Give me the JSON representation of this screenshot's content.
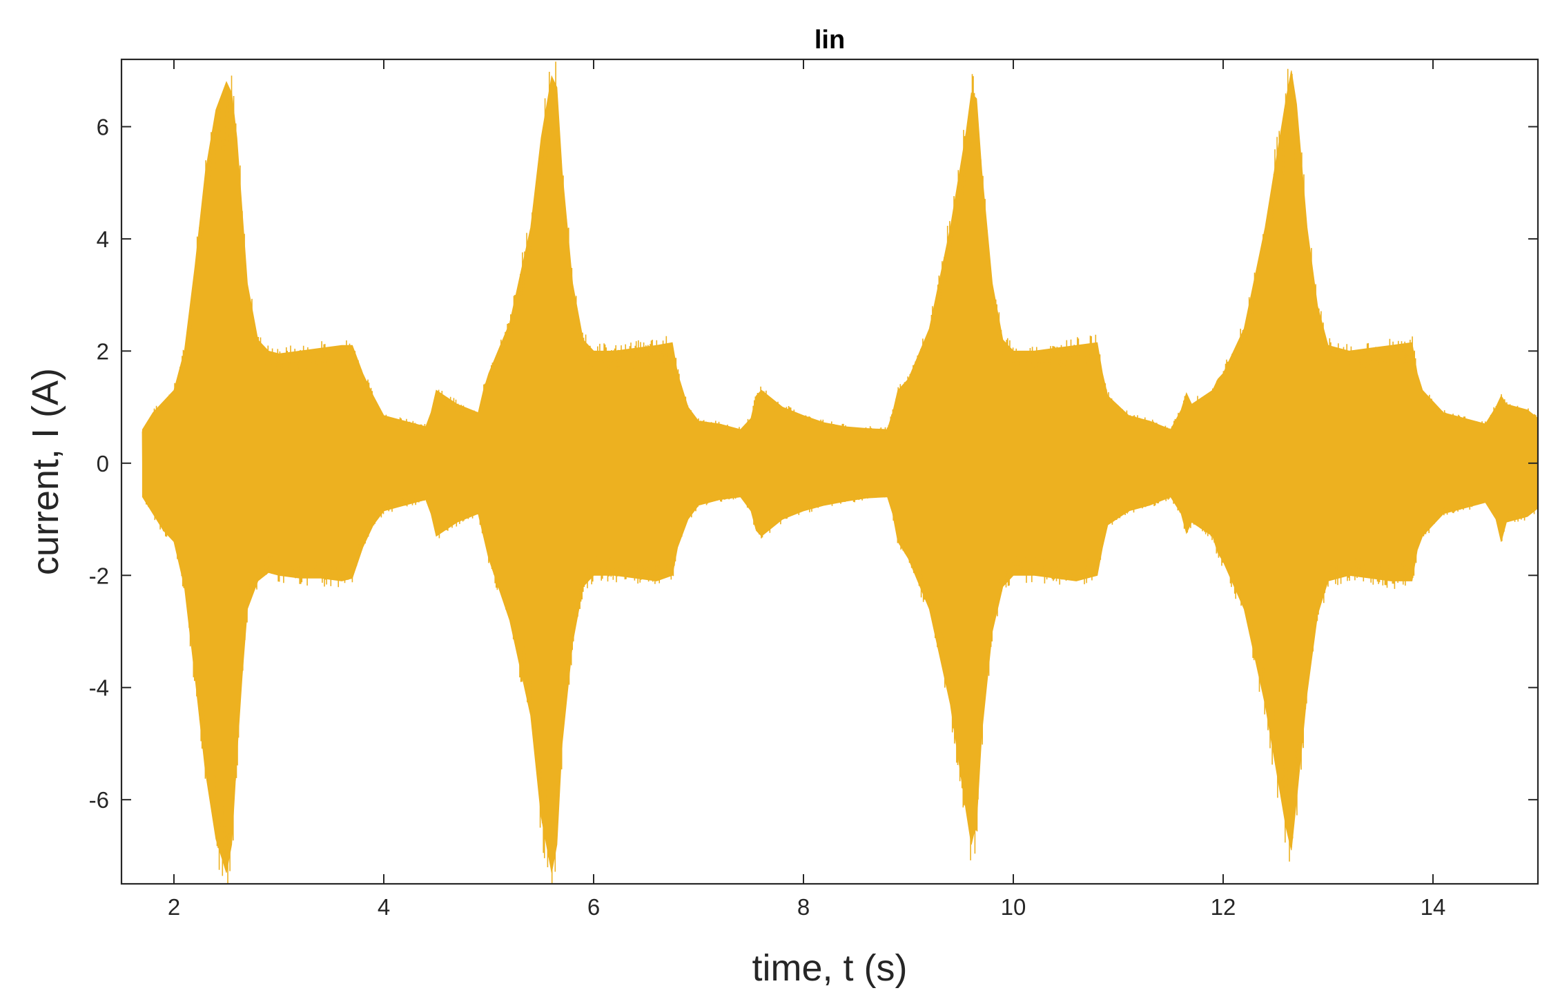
{
  "chart_data": {
    "type": "line",
    "title": "lin",
    "xlabel": "time, t (s)",
    "ylabel": "current, I (A)",
    "xlim": [
      1.5,
      15
    ],
    "ylim": [
      -7.5,
      7.2
    ],
    "xticks": [
      2,
      4,
      6,
      8,
      10,
      12,
      14
    ],
    "yticks": [
      -6,
      -4,
      -2,
      0,
      2,
      4,
      6
    ],
    "xtick_labels": [
      "2",
      "4",
      "6",
      "8",
      "10",
      "12",
      "14"
    ],
    "ytick_labels": [
      "-6",
      "-4",
      "-2",
      "0",
      "2",
      "4",
      "6"
    ],
    "grid": false,
    "box": true,
    "series": [
      {
        "color": "#EDB120",
        "underlay_color": "#0072BD",
        "style": "oscillating signal, filled envelope",
        "envelope": {
          "t": [
            1.7,
            1.8,
            1.9,
            2.0,
            2.1,
            2.2,
            2.3,
            2.4,
            2.5,
            2.55,
            2.6,
            2.65,
            2.7,
            2.8,
            2.9,
            3.0,
            3.2,
            3.4,
            3.6,
            3.7,
            3.8,
            3.9,
            4.0,
            4.2,
            4.4,
            4.45,
            4.5,
            4.7,
            4.9,
            4.95,
            5.0,
            5.2,
            5.4,
            5.5,
            5.6,
            5.65,
            5.7,
            5.8,
            5.9,
            6.0,
            6.2,
            6.4,
            6.6,
            6.75,
            6.8,
            6.9,
            7.0,
            7.2,
            7.4,
            7.5,
            7.55,
            7.6,
            7.8,
            8.0,
            8.2,
            8.4,
            8.6,
            8.8,
            8.85,
            8.9,
            9.0,
            9.2,
            9.4,
            9.55,
            9.6,
            9.65,
            9.7,
            9.8,
            9.9,
            10.0,
            10.2,
            10.4,
            10.6,
            10.8,
            10.85,
            10.9,
            11.1,
            11.3,
            11.5,
            11.6,
            11.65,
            11.7,
            11.9,
            11.95,
            12.0,
            12.2,
            12.4,
            12.6,
            12.65,
            12.7,
            12.8,
            12.9,
            13.0,
            13.2,
            13.4,
            13.6,
            13.8,
            13.85,
            13.9,
            14.1,
            14.3,
            14.5,
            14.6,
            14.65,
            14.7,
            14.9,
            15.0
          ],
          "upper": [
            0.6,
            0.9,
            1.1,
            1.3,
            2.0,
            3.5,
            5.2,
            6.3,
            6.8,
            6.6,
            5.8,
            4.5,
            3.2,
            2.2,
            2.0,
            1.95,
            2.0,
            2.05,
            2.1,
            2.1,
            1.6,
            1.2,
            0.85,
            0.75,
            0.65,
            0.9,
            1.3,
            1.05,
            0.9,
            1.3,
            1.6,
            2.5,
            4.2,
            5.8,
            6.9,
            6.7,
            5.2,
            3.2,
            2.2,
            2.0,
            2.0,
            2.05,
            2.1,
            2.15,
            1.6,
            1.0,
            0.75,
            0.7,
            0.6,
            0.8,
            1.2,
            1.3,
            1.0,
            0.85,
            0.72,
            0.65,
            0.62,
            0.6,
            0.9,
            1.3,
            1.5,
            2.4,
            4.2,
            5.9,
            6.6,
            6.5,
            5.2,
            3.2,
            2.2,
            2.0,
            2.0,
            2.05,
            2.1,
            2.15,
            1.6,
            1.2,
            0.85,
            0.75,
            0.6,
            0.95,
            1.25,
            1.05,
            1.3,
            1.5,
            1.6,
            2.4,
            4.2,
            6.5,
            7.0,
            6.4,
            4.2,
            2.8,
            2.1,
            2.0,
            2.05,
            2.1,
            2.15,
            1.6,
            1.3,
            0.9,
            0.8,
            0.7,
            1.0,
            1.2,
            1.05,
            0.95,
            0.8
          ],
          "lower": [
            -0.6,
            -0.9,
            -1.2,
            -1.4,
            -2.2,
            -3.8,
            -5.5,
            -6.7,
            -7.3,
            -6.8,
            -5.2,
            -3.8,
            -2.6,
            -2.1,
            -1.95,
            -2.0,
            -2.05,
            -2.05,
            -2.1,
            -2.05,
            -1.5,
            -1.1,
            -0.85,
            -0.75,
            -0.65,
            -0.9,
            -1.3,
            -1.05,
            -0.9,
            -1.3,
            -1.7,
            -2.8,
            -4.5,
            -6.3,
            -7.3,
            -6.8,
            -5.0,
            -3.2,
            -2.2,
            -2.0,
            -2.0,
            -2.05,
            -2.1,
            -2.0,
            -1.5,
            -1.0,
            -0.75,
            -0.65,
            -0.6,
            -0.85,
            -1.2,
            -1.3,
            -1.0,
            -0.85,
            -0.75,
            -0.68,
            -0.62,
            -0.6,
            -0.9,
            -1.4,
            -1.7,
            -2.6,
            -4.3,
            -6.2,
            -6.8,
            -6.4,
            -4.8,
            -3.0,
            -2.2,
            -2.0,
            -2.0,
            -2.05,
            -2.1,
            -2.0,
            -1.5,
            -1.1,
            -0.85,
            -0.75,
            -0.6,
            -0.9,
            -1.25,
            -1.05,
            -1.3,
            -1.6,
            -1.75,
            -2.6,
            -4.3,
            -6.5,
            -6.9,
            -6.0,
            -4.1,
            -2.7,
            -2.1,
            -2.0,
            -2.05,
            -2.1,
            -2.1,
            -1.55,
            -1.3,
            -0.9,
            -0.8,
            -0.7,
            -1.0,
            -1.4,
            -1.05,
            -0.95,
            -0.8
          ]
        }
      }
    ]
  }
}
